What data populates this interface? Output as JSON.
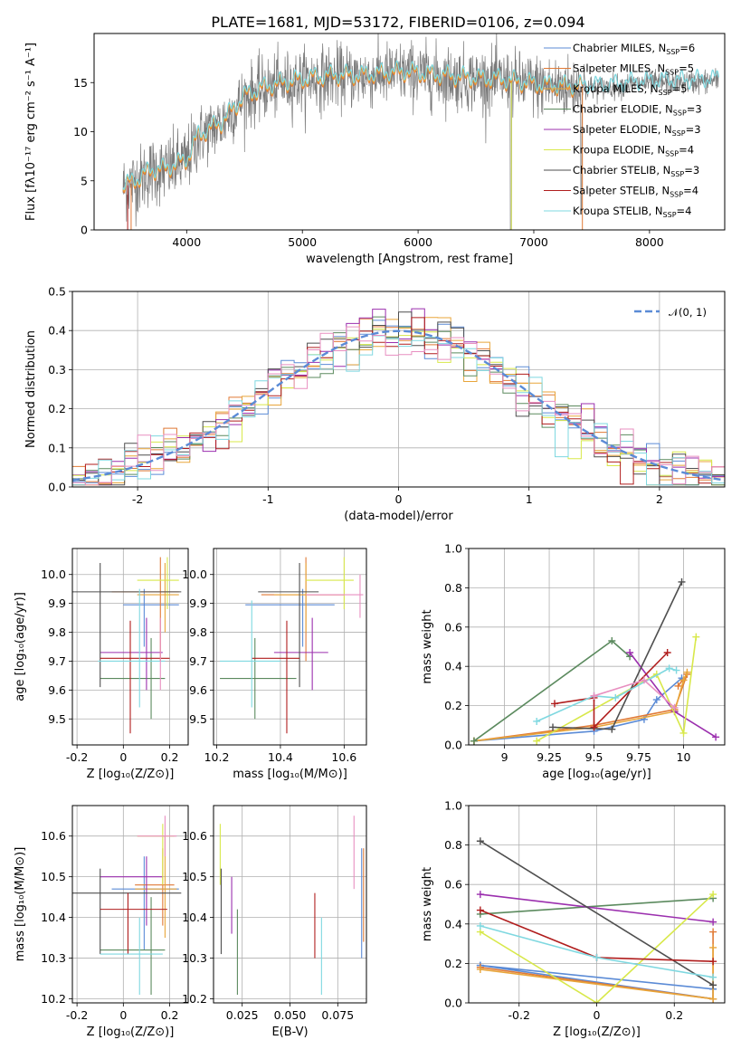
{
  "title": "PLATE=1681, MJD=53172, FIBERID=0106, z=0.094",
  "colors": {
    "Chabrier MILES": "#5b8bd6",
    "Salpeter MILES": "#e07a36",
    "Kroupa MILES": "#e8a53a",
    "Chabrier ELODIE": "#5b8a5e",
    "Salpeter ELODIE": "#9b2fae",
    "Kroupa ELODIE": "#d8e84a",
    "Chabrier STELIB": "#4f4f4f",
    "Salpeter STELIB": "#b01d1d",
    "Kroupa STELIB": "#7fd8e0",
    "pink": "#e88fc0",
    "data": "#7a7a7a",
    "normal": "#5b8bd6"
  },
  "chart_data": [
    {
      "id": "spectrum",
      "type": "line",
      "title": "PLATE=1681, MJD=53172, FIBERID=0106, z=0.094",
      "xlabel": "wavelength [Angstrom, rest frame]",
      "ylabel": "Flux [fλ10⁻¹⁷ erg cm⁻² s⁻¹ A⁻¹]",
      "xlim": [
        3200,
        8650
      ],
      "ylim": [
        0,
        20
      ],
      "xticks": [
        4000,
        5000,
        6000,
        7000,
        8000
      ],
      "yticks": [
        0,
        5,
        10,
        15
      ],
      "legend_position": "right",
      "legend": [
        {
          "label": "Chabrier MILES, N",
          "sub": "SSP",
          "tail": "=6"
        },
        {
          "label": "Salpeter MILES, N",
          "sub": "SSP",
          "tail": "=5"
        },
        {
          "label": "Kroupa MILES, N",
          "sub": "SSP",
          "tail": "=5"
        },
        {
          "label": "Chabrier ELODIE, N",
          "sub": "SSP",
          "tail": "=3"
        },
        {
          "label": "Salpeter ELODIE, N",
          "sub": "SSP",
          "tail": "=3"
        },
        {
          "label": "Kroupa ELODIE, N",
          "sub": "SSP",
          "tail": "=4"
        },
        {
          "label": "Chabrier STELIB, N",
          "sub": "SSP",
          "tail": "=3"
        },
        {
          "label": "Salpeter STELIB, N",
          "sub": "SSP",
          "tail": "=4"
        },
        {
          "label": "Kroupa STELIB, N",
          "sub": "SSP",
          "tail": "=4"
        }
      ],
      "continuum": [
        [
          3450,
          4.3
        ],
        [
          3600,
          5.2
        ],
        [
          3700,
          6.0
        ],
        [
          3800,
          6.0
        ],
        [
          3900,
          6.5
        ],
        [
          4000,
          7.0
        ],
        [
          4100,
          9.5
        ],
        [
          4300,
          10.8
        ],
        [
          4500,
          13.5
        ],
        [
          4700,
          14.5
        ],
        [
          4900,
          15.0
        ],
        [
          5100,
          15.4
        ],
        [
          5300,
          15.6
        ],
        [
          5500,
          15.6
        ],
        [
          5700,
          15.8
        ],
        [
          5900,
          16.0
        ],
        [
          6100,
          15.7
        ],
        [
          6300,
          15.5
        ],
        [
          6500,
          15.3
        ],
        [
          6700,
          15.2
        ],
        [
          6900,
          14.9
        ],
        [
          7100,
          14.6
        ],
        [
          7300,
          14.5
        ],
        [
          7500,
          14.5
        ],
        [
          7700,
          14.6
        ],
        [
          7900,
          14.9
        ],
        [
          8100,
          15.0
        ],
        [
          8300,
          15.0
        ],
        [
          8600,
          15.2
        ]
      ]
    },
    {
      "id": "residuals",
      "type": "bar",
      "xlabel": "(data-model)/error",
      "ylabel": "Normed distribution",
      "xlim": [
        -2.5,
        2.5
      ],
      "ylim": [
        0,
        0.5
      ],
      "xticks": [
        -2,
        -1,
        0,
        1,
        2
      ],
      "yticks": [
        0.0,
        0.1,
        0.2,
        0.3,
        0.4,
        0.5
      ],
      "bin_width": 0.1,
      "legend": "𝒩(0, 1)",
      "legend_position": "upper right",
      "grid": true
    },
    {
      "id": "age_vs_Z",
      "type": "scatter",
      "xlabel": "Z [log₁₀(Z/Z⊙)]",
      "ylabel": "age  [log₁₀(age/yr)]",
      "xlim": [
        -0.22,
        0.28
      ],
      "ylim": [
        9.41,
        10.09
      ],
      "xticks": [
        -0.2,
        0.0,
        0.2
      ],
      "yticks": [
        9.5,
        9.6,
        9.7,
        9.8,
        9.9,
        10.0
      ],
      "grid": true,
      "points": [
        {
          "s": "Chabrier MILES",
          "x": 0.09,
          "y": 9.895,
          "xlo": 0.0,
          "xhi": 0.24,
          "ylo": 9.75,
          "yhi": 9.95
        },
        {
          "s": "Salpeter MILES",
          "x": 0.16,
          "y": 9.94,
          "xlo": -0.05,
          "xhi": 0.24,
          "ylo": 9.7,
          "yhi": 10.06
        },
        {
          "s": "Kroupa MILES",
          "x": 0.18,
          "y": 9.93,
          "xlo": 0.06,
          "xhi": 0.24,
          "ylo": 9.8,
          "yhi": 10.04
        },
        {
          "s": "Chabrier ELODIE",
          "x": 0.12,
          "y": 9.64,
          "xlo": -0.1,
          "xhi": 0.18,
          "ylo": 9.5,
          "yhi": 9.78
        },
        {
          "s": "Salpeter ELODIE",
          "x": 0.1,
          "y": 9.73,
          "xlo": -0.1,
          "xhi": 0.17,
          "ylo": 9.6,
          "yhi": 9.85
        },
        {
          "s": "Kroupa ELODIE",
          "x": 0.19,
          "y": 9.98,
          "xlo": 0.06,
          "xhi": 0.24,
          "ylo": 9.88,
          "yhi": 10.06
        },
        {
          "s": "Chabrier STELIB",
          "x": -0.1,
          "y": 9.94,
          "xlo": -0.22,
          "xhi": 0.25,
          "ylo": 9.61,
          "yhi": 10.04
        },
        {
          "s": "Salpeter STELIB",
          "x": 0.03,
          "y": 9.71,
          "xlo": -0.1,
          "xhi": 0.2,
          "ylo": 9.45,
          "yhi": 9.84
        },
        {
          "s": "Kroupa STELIB",
          "x": 0.07,
          "y": 9.7,
          "xlo": -0.11,
          "xhi": 0.18,
          "ylo": 9.54,
          "yhi": 9.95
        },
        {
          "s": "pink",
          "x": 0.16,
          "y": 9.72,
          "xlo": 0.16,
          "xhi": 0.16,
          "ylo": 9.6,
          "yhi": 9.85
        }
      ]
    },
    {
      "id": "age_vs_mass",
      "type": "scatter",
      "xlabel": "mass [log₁₀(M/M⊙)]",
      "ylabel": "",
      "xlim": [
        10.19,
        10.67
      ],
      "ylim": [
        9.41,
        10.09
      ],
      "xticks": [
        10.2,
        10.4,
        10.6
      ],
      "yticks": [
        9.5,
        9.6,
        9.7,
        9.8,
        9.9,
        10.0
      ],
      "grid": true,
      "points": [
        {
          "s": "Chabrier MILES",
          "x": 10.47,
          "y": 9.895,
          "xlo": 10.29,
          "xhi": 10.57,
          "ylo": 9.75,
          "yhi": 9.95
        },
        {
          "s": "Salpeter MILES",
          "x": 10.48,
          "y": 9.93,
          "xlo": 10.34,
          "xhi": 10.6,
          "ylo": 9.7,
          "yhi": 10.06
        },
        {
          "s": "Kroupa MILES",
          "x": 10.48,
          "y": 9.93,
          "xlo": 10.38,
          "xhi": 10.6,
          "ylo": 9.8,
          "yhi": 10.04
        },
        {
          "s": "Chabrier ELODIE",
          "x": 10.32,
          "y": 9.64,
          "xlo": 10.21,
          "xhi": 10.45,
          "ylo": 9.5,
          "yhi": 9.78
        },
        {
          "s": "Salpeter ELODIE",
          "x": 10.5,
          "y": 9.73,
          "xlo": 10.38,
          "xhi": 10.55,
          "ylo": 9.6,
          "yhi": 9.85
        },
        {
          "s": "Kroupa ELODIE",
          "x": 10.6,
          "y": 9.98,
          "xlo": 10.48,
          "xhi": 10.63,
          "ylo": 9.88,
          "yhi": 10.06
        },
        {
          "s": "Chabrier STELIB",
          "x": 10.46,
          "y": 9.94,
          "xlo": 10.33,
          "xhi": 10.52,
          "ylo": 9.61,
          "yhi": 10.04
        },
        {
          "s": "Salpeter STELIB",
          "x": 10.42,
          "y": 9.71,
          "xlo": 10.31,
          "xhi": 10.46,
          "ylo": 9.45,
          "yhi": 9.84
        },
        {
          "s": "Kroupa STELIB",
          "x": 10.31,
          "y": 9.7,
          "xlo": 10.21,
          "xhi": 10.4,
          "ylo": 9.54,
          "yhi": 9.91
        },
        {
          "s": "pink",
          "x": 10.65,
          "y": 9.93,
          "xlo": 10.48,
          "xhi": 10.66,
          "ylo": 9.85,
          "yhi": 10.0
        }
      ]
    },
    {
      "id": "weight_vs_age",
      "type": "line",
      "xlabel": "age  [log₁₀(age/yr)]",
      "ylabel": "mass weight",
      "xlim": [
        8.8,
        10.23
      ],
      "ylim": [
        0.0,
        1.0
      ],
      "xticks": [
        9.0,
        9.25,
        9.5,
        9.75,
        10.0
      ],
      "yticks": [
        0.0,
        0.2,
        0.4,
        0.6,
        0.8,
        1.0
      ],
      "grid": true,
      "series": [
        {
          "s": "Chabrier MILES",
          "x": [
            8.83,
            9.5,
            9.78,
            9.85,
            9.99
          ],
          "y": [
            0.02,
            0.07,
            0.13,
            0.23,
            0.34
          ]
        },
        {
          "s": "Salpeter MILES",
          "x": [
            8.83,
            9.5,
            9.95,
            10.02,
            9.97
          ],
          "y": [
            0.02,
            0.1,
            0.18,
            0.36,
            0.3
          ]
        },
        {
          "s": "Kroupa MILES",
          "x": [
            8.83,
            9.5,
            9.95,
            10.0,
            10.02
          ],
          "y": [
            0.02,
            0.09,
            0.17,
            0.33,
            0.37
          ]
        },
        {
          "s": "Chabrier ELODIE",
          "x": [
            8.83,
            9.6,
            9.7
          ],
          "y": [
            0.02,
            0.53,
            0.45
          ]
        },
        {
          "s": "Salpeter ELODIE",
          "x": [
            9.7,
            9.95,
            10.18
          ],
          "y": [
            0.47,
            0.17,
            0.04
          ]
        },
        {
          "s": "Kroupa ELODIE",
          "x": [
            9.18,
            9.85,
            10.0,
            10.07
          ],
          "y": [
            0.02,
            0.36,
            0.06,
            0.55
          ]
        },
        {
          "s": "Chabrier STELIB",
          "x": [
            9.27,
            9.6,
            9.99
          ],
          "y": [
            0.09,
            0.08,
            0.83
          ]
        },
        {
          "s": "Salpeter STELIB",
          "x": [
            9.28,
            9.5,
            9.5,
            9.91
          ],
          "y": [
            0.21,
            0.24,
            0.09,
            0.47
          ]
        },
        {
          "s": "Kroupa STELIB",
          "x": [
            9.18,
            9.5,
            9.62,
            9.92,
            9.96
          ],
          "y": [
            0.12,
            0.25,
            0.24,
            0.39,
            0.38
          ]
        },
        {
          "s": "pink",
          "x": [
            9.5,
            9.78,
            9.95
          ],
          "y": [
            0.25,
            0.33,
            0.19
          ]
        }
      ]
    },
    {
      "id": "mass_vs_Z",
      "type": "scatter",
      "xlabel": "Z [log₁₀(Z/Z⊙)]",
      "ylabel": "mass [log₁₀(M/M⊙)]",
      "xlim": [
        -0.22,
        0.28
      ],
      "ylim": [
        10.19,
        10.675
      ],
      "xticks": [
        -0.2,
        0.0,
        0.2
      ],
      "yticks": [
        10.2,
        10.3,
        10.4,
        10.5,
        10.6
      ],
      "grid": true,
      "points": [
        {
          "s": "Chabrier MILES",
          "x": 0.09,
          "y": 10.47,
          "xlo": -0.05,
          "xhi": 0.24,
          "ylo": 10.32,
          "yhi": 10.55
        },
        {
          "s": "Salpeter MILES",
          "x": 0.17,
          "y": 10.48,
          "xlo": 0.05,
          "xhi": 0.22,
          "ylo": 10.38,
          "yhi": 10.57
        },
        {
          "s": "Kroupa MILES",
          "x": 0.18,
          "y": 10.47,
          "xlo": 0.05,
          "xhi": 0.23,
          "ylo": 10.35,
          "yhi": 10.6
        },
        {
          "s": "Chabrier ELODIE",
          "x": 0.12,
          "y": 10.32,
          "xlo": -0.1,
          "xhi": 0.18,
          "ylo": 10.21,
          "yhi": 10.45
        },
        {
          "s": "Salpeter ELODIE",
          "x": 0.1,
          "y": 10.5,
          "xlo": -0.1,
          "xhi": 0.17,
          "ylo": 10.38,
          "yhi": 10.55
        },
        {
          "s": "Kroupa ELODIE",
          "x": 0.17,
          "y": 10.6,
          "xlo": 0.06,
          "xhi": 0.22,
          "ylo": 10.48,
          "yhi": 10.63
        },
        {
          "s": "Chabrier STELIB",
          "x": -0.1,
          "y": 10.46,
          "xlo": -0.22,
          "xhi": 0.25,
          "ylo": 10.31,
          "yhi": 10.52
        },
        {
          "s": "Salpeter STELIB",
          "x": 0.02,
          "y": 10.42,
          "xlo": -0.1,
          "xhi": 0.19,
          "ylo": 10.31,
          "yhi": 10.46
        },
        {
          "s": "Kroupa STELIB",
          "x": 0.07,
          "y": 10.31,
          "xlo": -0.1,
          "xhi": 0.17,
          "ylo": 10.21,
          "yhi": 10.4
        },
        {
          "s": "pink",
          "x": 0.18,
          "y": 10.6,
          "xlo": 0.06,
          "xhi": 0.23,
          "ylo": 10.55,
          "yhi": 10.65
        }
      ]
    },
    {
      "id": "mass_vs_EBV",
      "type": "scatter",
      "xlabel": "E(B-V)",
      "ylabel": "",
      "xlim": [
        0.01,
        0.09
      ],
      "ylim": [
        10.19,
        10.675
      ],
      "xticks": [
        0.025,
        0.05,
        0.075
      ],
      "xtick_labels": [
        "0.025",
        "0.050",
        "0.075"
      ],
      "yticks": [
        10.2,
        10.3,
        10.4,
        10.5,
        10.6
      ],
      "grid": true,
      "points": [
        {
          "s": "Kroupa ELODIE",
          "x": 0.0135,
          "y": 10.55,
          "ylo": 10.48,
          "yhi": 10.63
        },
        {
          "s": "Chabrier STELIB",
          "x": 0.014,
          "y": 10.42,
          "ylo": 10.31,
          "yhi": 10.52
        },
        {
          "s": "Salpeter ELODIE",
          "x": 0.0195,
          "y": 10.45,
          "ylo": 10.36,
          "yhi": 10.5
        },
        {
          "s": "Chabrier ELODIE",
          "x": 0.0225,
          "y": 10.32,
          "ylo": 10.21,
          "yhi": 10.42
        },
        {
          "s": "Salpeter STELIB",
          "x": 0.063,
          "y": 10.38,
          "ylo": 10.3,
          "yhi": 10.46
        },
        {
          "s": "Kroupa STELIB",
          "x": 0.0665,
          "y": 10.32,
          "ylo": 10.21,
          "yhi": 10.4
        },
        {
          "s": "pink",
          "x": 0.0835,
          "y": 10.57,
          "ylo": 10.47,
          "yhi": 10.65
        },
        {
          "s": "Chabrier MILES",
          "x": 0.0875,
          "y": 10.45,
          "ylo": 10.3,
          "yhi": 10.57
        },
        {
          "s": "Salpeter MILES",
          "x": 0.0885,
          "y": 10.46,
          "ylo": 10.34,
          "yhi": 10.57
        }
      ]
    },
    {
      "id": "weight_vs_Z",
      "type": "line",
      "xlabel": "Z [log₁₀(Z/Z⊙)]",
      "ylabel": "mass weight",
      "xlim": [
        -0.33,
        0.33
      ],
      "ylim": [
        0.0,
        1.0
      ],
      "xticks": [
        -0.2,
        0.0,
        0.2
      ],
      "yticks": [
        0.0,
        0.2,
        0.4,
        0.6,
        0.8,
        1.0
      ],
      "grid": true,
      "series": [
        {
          "s": "Chabrier MILES",
          "x": [
            -0.3,
            0.3,
            0.3,
            -0.3
          ],
          "y": [
            0.19,
            0.02,
            0.07,
            0.19
          ]
        },
        {
          "s": "Salpeter MILES",
          "x": [
            -0.3,
            0.3,
            0.3
          ],
          "y": [
            0.18,
            0.02,
            0.36
          ]
        },
        {
          "s": "Kroupa MILES",
          "x": [
            -0.3,
            0.3,
            0.3
          ],
          "y": [
            0.17,
            0.02,
            0.28
          ]
        },
        {
          "s": "Chabrier ELODIE",
          "x": [
            -0.3,
            0.3
          ],
          "y": [
            0.45,
            0.53
          ]
        },
        {
          "s": "Salpeter ELODIE",
          "x": [
            -0.3,
            0.3
          ],
          "y": [
            0.55,
            0.41
          ]
        },
        {
          "s": "Kroupa ELODIE",
          "x": [
            -0.3,
            0.0,
            0.3
          ],
          "y": [
            0.36,
            0.0,
            0.55
          ]
        },
        {
          "s": "Chabrier STELIB",
          "x": [
            -0.3,
            0.3
          ],
          "y": [
            0.82,
            0.09
          ]
        },
        {
          "s": "Salpeter STELIB",
          "x": [
            -0.3,
            0.0,
            0.3
          ],
          "y": [
            0.47,
            0.23,
            0.21
          ]
        },
        {
          "s": "Kroupa STELIB",
          "x": [
            -0.3,
            0.0,
            0.3
          ],
          "y": [
            0.39,
            0.23,
            0.13
          ]
        }
      ]
    }
  ]
}
